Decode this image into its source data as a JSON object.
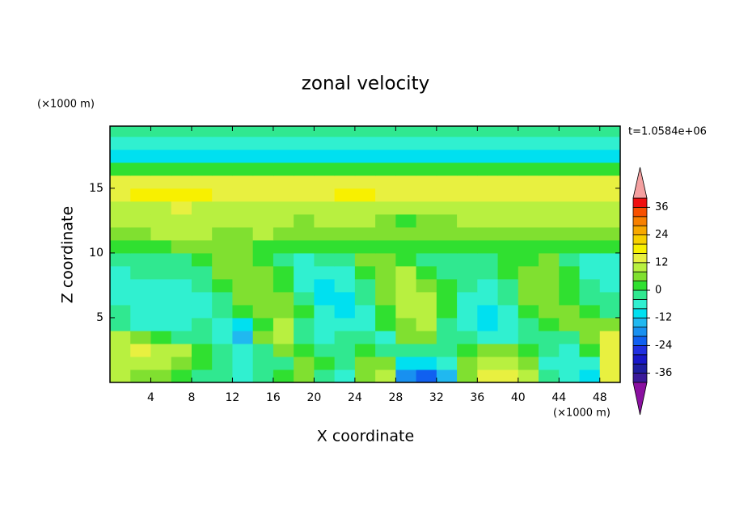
{
  "chart_data": {
    "type": "contour",
    "title": "zonal velocity",
    "x_label": "X coordinate",
    "y_label": "Z coordinate",
    "x_unit": "(×1000 m)",
    "y_unit": "(×1000 m)",
    "annotation": "t=1.0584e+06",
    "xlim": [
      0,
      50
    ],
    "ylim": [
      0,
      19.8
    ],
    "xticks": [
      4,
      8,
      12,
      16,
      20,
      24,
      28,
      32,
      36,
      40,
      44,
      48
    ],
    "yticks": [
      5,
      10,
      15
    ],
    "x": [
      1,
      3,
      5,
      7,
      9,
      11,
      13,
      15,
      17,
      19,
      21,
      23,
      25,
      27,
      29,
      31,
      33,
      35,
      37,
      39,
      41,
      43,
      45,
      47,
      49
    ],
    "y": [
      0.5,
      1.5,
      2.5,
      3.5,
      4.5,
      5.5,
      6.5,
      7.5,
      8.5,
      9.5,
      10.5,
      11.5,
      12.5,
      13.5,
      14.5,
      15.5,
      16.5,
      17.5,
      18.5,
      19.5
    ],
    "values": [
      [
        8,
        6,
        4,
        2,
        -2,
        -4,
        -6,
        -4,
        0,
        4,
        -2,
        -6,
        6,
        10,
        -20,
        -24,
        -14,
        6,
        12,
        14,
        10,
        -4,
        -8,
        -10,
        12
      ],
      [
        10,
        10,
        8,
        4,
        0,
        -4,
        -6,
        -4,
        -2,
        4,
        2,
        -4,
        4,
        6,
        -10,
        -12,
        -6,
        4,
        8,
        10,
        6,
        -6,
        -8,
        -6,
        12
      ],
      [
        10,
        12,
        10,
        8,
        2,
        -4,
        -6,
        -2,
        4,
        2,
        -4,
        -2,
        2,
        -2,
        -4,
        -4,
        -2,
        2,
        4,
        4,
        2,
        -4,
        -6,
        2,
        14
      ],
      [
        8,
        4,
        0,
        -2,
        -4,
        -6,
        -14,
        4,
        10,
        -2,
        -6,
        -4,
        -2,
        -6,
        4,
        6,
        -2,
        -4,
        -6,
        -6,
        -4,
        -4,
        -2,
        6,
        14
      ],
      [
        -2,
        -6,
        -8,
        -6,
        -4,
        -6,
        -12,
        2,
        8,
        -2,
        -8,
        -8,
        -6,
        0,
        6,
        8,
        -2,
        -8,
        -12,
        -8,
        -2,
        2,
        4,
        6,
        6
      ],
      [
        -4,
        -6,
        -8,
        -8,
        -6,
        -4,
        0,
        4,
        6,
        0,
        -8,
        -10,
        -6,
        2,
        8,
        8,
        0,
        -8,
        -10,
        -6,
        2,
        4,
        4,
        0,
        -2
      ],
      [
        -6,
        -8,
        -8,
        -8,
        -6,
        -2,
        4,
        6,
        4,
        -4,
        -10,
        -10,
        -4,
        4,
        10,
        8,
        2,
        -6,
        -8,
        -4,
        4,
        6,
        2,
        -2,
        -4
      ],
      [
        -6,
        -6,
        -8,
        -6,
        -4,
        2,
        6,
        6,
        2,
        -6,
        -10,
        -8,
        -2,
        6,
        10,
        6,
        0,
        -4,
        -6,
        -2,
        6,
        6,
        0,
        -4,
        -6
      ],
      [
        -6,
        -4,
        -4,
        -4,
        -2,
        4,
        4,
        6,
        0,
        -8,
        -8,
        -6,
        2,
        6,
        8,
        2,
        -2,
        -4,
        -4,
        0,
        4,
        6,
        0,
        -6,
        -8
      ],
      [
        -4,
        -2,
        -2,
        -2,
        2,
        4,
        4,
        2,
        -2,
        -6,
        -4,
        -2,
        4,
        4,
        2,
        -2,
        -4,
        -4,
        -2,
        2,
        2,
        4,
        -2,
        -6,
        -6
      ],
      [
        2,
        2,
        2,
        4,
        4,
        4,
        4,
        2,
        2,
        0,
        2,
        2,
        2,
        2,
        2,
        0,
        2,
        2,
        2,
        2,
        2,
        2,
        2,
        0,
        2
      ],
      [
        6,
        6,
        8,
        8,
        8,
        6,
        6,
        8,
        6,
        4,
        4,
        6,
        6,
        4,
        4,
        6,
        4,
        6,
        6,
        6,
        6,
        6,
        6,
        6,
        6
      ],
      [
        8,
        8,
        10,
        10,
        10,
        8,
        8,
        10,
        8,
        6,
        8,
        8,
        8,
        4,
        2,
        4,
        6,
        8,
        8,
        8,
        8,
        8,
        8,
        8,
        8
      ],
      [
        10,
        10,
        10,
        12,
        10,
        10,
        10,
        10,
        10,
        10,
        10,
        10,
        10,
        10,
        10,
        10,
        10,
        10,
        10,
        10,
        10,
        10,
        10,
        10,
        10
      ],
      [
        14,
        16,
        17,
        17,
        16,
        14,
        14,
        14,
        14,
        14,
        14,
        16,
        16,
        14,
        14,
        14,
        14,
        14,
        14,
        14,
        14,
        14,
        14,
        14,
        14
      ],
      [
        13,
        14,
        14,
        14,
        13,
        12,
        12,
        12,
        12,
        12,
        12,
        12,
        12,
        12,
        12,
        12,
        12,
        12,
        12,
        12,
        12,
        12,
        12,
        13,
        13
      ],
      [
        2,
        2,
        2,
        2,
        2,
        3,
        2,
        2,
        2,
        2,
        2,
        2,
        2,
        2,
        2,
        2,
        2,
        2,
        2,
        2,
        2,
        2,
        2,
        2,
        2
      ],
      [
        -9,
        -9,
        -10,
        -10,
        -9,
        -9,
        -9,
        -10,
        -10,
        -9,
        -9,
        -9,
        -10,
        -10,
        -9,
        -9,
        -9,
        -10,
        -10,
        -9,
        -9,
        -9,
        -10,
        -10,
        -9
      ],
      [
        -5,
        -5,
        -6,
        -6,
        -5,
        -5,
        -5,
        -6,
        -6,
        -5,
        -5,
        -5,
        -6,
        -6,
        -5,
        -5,
        -5,
        -6,
        -6,
        -5,
        -5,
        -5,
        -6,
        -6,
        -5
      ],
      [
        -2,
        -2,
        -2,
        -2,
        -2,
        -2,
        -2,
        -2,
        -2,
        -2,
        -2,
        -2,
        -2,
        -2,
        -2,
        -2,
        -2,
        -2,
        -2,
        -2,
        -2,
        -2,
        -2,
        -2,
        -2
      ]
    ],
    "levels": [
      -40,
      -36,
      -32,
      -28,
      -24,
      -20,
      -16,
      -12,
      -8,
      -4,
      0,
      4,
      8,
      12,
      16,
      20,
      24,
      28,
      32,
      36,
      40
    ],
    "colors": [
      "#3a1a9a",
      "#1e1ea0",
      "#1818c8",
      "#2030e0",
      "#1060f0",
      "#1890f0",
      "#20b8f0",
      "#00e0f0",
      "#30f0d0",
      "#30e890",
      "#30e030",
      "#80e030",
      "#b8f040",
      "#e8f040",
      "#f8f000",
      "#f8d000",
      "#f8a800",
      "#f88000",
      "#f85000",
      "#f01010"
    ],
    "under_color": "#8a10a0",
    "over_color": "#f4a0a0",
    "colorbar_ticks": [
      -36,
      -24,
      -12,
      0,
      12,
      24,
      36
    ]
  }
}
